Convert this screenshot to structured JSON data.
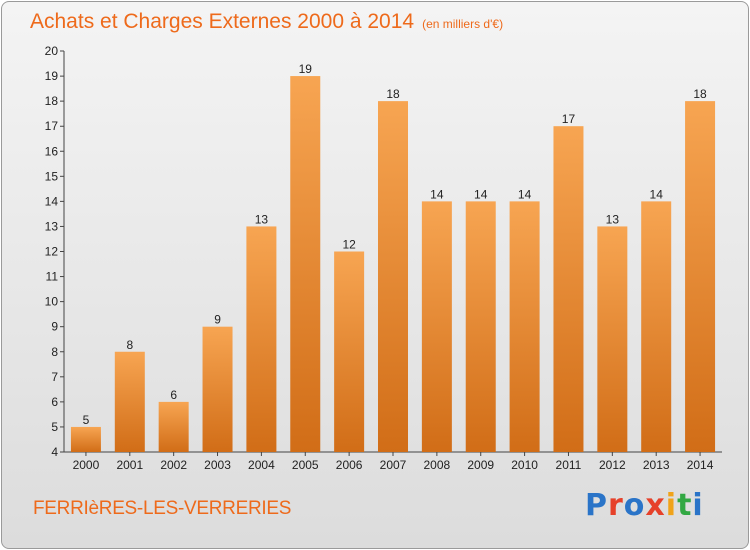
{
  "header": {
    "title": "Achats et Charges Externes 2000 à 2014",
    "subtitle": "(en milliers d'€)"
  },
  "footer": {
    "town": "FERRIèRES-LES-VERRERIES",
    "logo_letters": [
      "P",
      "r",
      "o",
      "x",
      "i",
      "t",
      "i"
    ],
    "logo_colors": [
      "#2a74c8",
      "#e6412a",
      "#2a74c8",
      "#e6412a",
      "#f0a31a",
      "#32a843",
      "#2a74c8"
    ]
  },
  "colors": {
    "bar_light": "#f7a552",
    "bar_dark": "#d16d17",
    "text": "#222222",
    "grid": "#c8c8c8"
  },
  "chart_data": {
    "type": "bar",
    "title": "Achats et Charges Externes 2000 à 2014",
    "subtitle": "(en milliers d'€)",
    "categories": [
      "2000",
      "2001",
      "2002",
      "2003",
      "2004",
      "2005",
      "2006",
      "2007",
      "2008",
      "2009",
      "2010",
      "2011",
      "2012",
      "2013",
      "2014"
    ],
    "values": [
      5,
      8,
      6,
      9,
      13,
      19,
      12,
      18,
      14,
      14,
      14,
      17,
      13,
      14,
      18
    ],
    "yticks": [
      "4",
      "5",
      "6",
      "7",
      "8",
      "9",
      "10",
      "11",
      "12",
      "13",
      "14",
      "15",
      "16",
      "17",
      "18",
      "19",
      "20"
    ],
    "ylim": [
      4,
      20
    ],
    "grid": false,
    "xlabel": "",
    "ylabel": ""
  }
}
